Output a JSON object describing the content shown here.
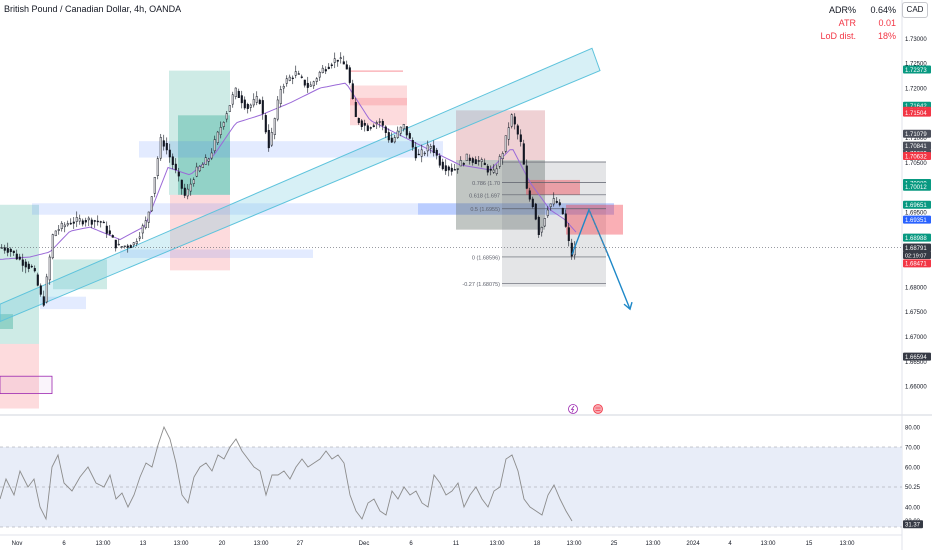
{
  "header": {
    "title": "British Pound / Canadian Dollar, 4h, OANDA",
    "currency": "CAD"
  },
  "stats": [
    {
      "label": "ADR%",
      "value": "0.64%",
      "color": "#131722"
    },
    {
      "label": "ATR",
      "value": "0.01",
      "color": "#f23645"
    },
    {
      "label": "LoD dist.",
      "value": "18%",
      "color": "#f23645"
    }
  ],
  "colors": {
    "up": "#1b2b2e",
    "down": "#131722",
    "wma": "#9b6ad8",
    "channel": "#5ec3dc",
    "arrow": "#1e88c8",
    "rsi": "#8c8c8c",
    "rsi_band": "#e8edf8",
    "green": "#089981",
    "red": "#f23645",
    "blue": "#2962ff",
    "gray": "#4a4e5a"
  },
  "chart_data": [
    {
      "type": "candlestick",
      "title": "British Pound / Canadian Dollar, 4h, OANDA",
      "ylim": [
        1.655,
        1.7365
      ],
      "y_ticks": [
        "1.73000",
        "1.72500",
        "1.72000",
        "1.71500",
        "1.71000",
        "1.70500",
        "1.70000",
        "1.69500",
        "1.69000",
        "1.68500",
        "1.68000",
        "1.67500",
        "1.67000",
        "1.66500",
        "1.66000"
      ],
      "x_ticks": [
        "Nov",
        "6",
        "13:00",
        "13",
        "13:00",
        "20",
        "13:00",
        "27",
        "Dec",
        "6",
        "11",
        "13:00",
        "18",
        "13:00",
        "25",
        "13:00",
        "2024",
        "4",
        "13:00",
        "15",
        "13:00"
      ],
      "anchors": [
        [
          0,
          1.688
        ],
        [
          10,
          1.6875
        ],
        [
          20,
          1.6855
        ],
        [
          34,
          1.6835
        ],
        [
          44,
          1.6762
        ],
        [
          54,
          1.691
        ],
        [
          70,
          1.693
        ],
        [
          88,
          1.6935
        ],
        [
          102,
          1.693
        ],
        [
          118,
          1.688
        ],
        [
          134,
          1.6885
        ],
        [
          148,
          1.6935
        ],
        [
          162,
          1.71
        ],
        [
          172,
          1.7055
        ],
        [
          186,
          1.698
        ],
        [
          196,
          1.703
        ],
        [
          210,
          1.706
        ],
        [
          222,
          1.7125
        ],
        [
          236,
          1.7195
        ],
        [
          248,
          1.716
        ],
        [
          260,
          1.718
        ],
        [
          270,
          1.708
        ],
        [
          282,
          1.7205
        ],
        [
          296,
          1.723
        ],
        [
          310,
          1.72
        ],
        [
          322,
          1.7235
        ],
        [
          338,
          1.726
        ],
        [
          348,
          1.724
        ],
        [
          356,
          1.714
        ],
        [
          368,
          1.712
        ],
        [
          380,
          1.7135
        ],
        [
          392,
          1.709
        ],
        [
          404,
          1.7125
        ],
        [
          418,
          1.706
        ],
        [
          432,
          1.7085
        ],
        [
          442,
          1.7045
        ],
        [
          454,
          1.7035
        ],
        [
          468,
          1.706
        ],
        [
          482,
          1.705
        ],
        [
          494,
          1.7025
        ],
        [
          504,
          1.7075
        ],
        [
          512,
          1.7145
        ],
        [
          522,
          1.7085
        ],
        [
          528,
          1.6985
        ],
        [
          534,
          1.6965
        ],
        [
          540,
          1.6905
        ],
        [
          548,
          1.696
        ],
        [
          556,
          1.6975
        ],
        [
          564,
          1.6945
        ],
        [
          572,
          1.6862
        ],
        [
          576,
          1.6878
        ]
      ],
      "wma_anchors": [
        [
          0,
          1.6855
        ],
        [
          30,
          1.686
        ],
        [
          50,
          1.687
        ],
        [
          70,
          1.6912
        ],
        [
          90,
          1.692
        ],
        [
          120,
          1.6895
        ],
        [
          145,
          1.6922
        ],
        [
          168,
          1.704
        ],
        [
          190,
          1.7025
        ],
        [
          214,
          1.7065
        ],
        [
          236,
          1.713
        ],
        [
          260,
          1.7145
        ],
        [
          290,
          1.717
        ],
        [
          320,
          1.72
        ],
        [
          346,
          1.721
        ],
        [
          370,
          1.7135
        ],
        [
          400,
          1.7105
        ],
        [
          430,
          1.7075
        ],
        [
          460,
          1.7045
        ],
        [
          490,
          1.7035
        ],
        [
          512,
          1.708
        ],
        [
          530,
          1.701
        ],
        [
          550,
          1.6955
        ],
        [
          565,
          1.6935
        ],
        [
          576,
          1.691
        ]
      ],
      "boxes": [
        {
          "x0": 0,
          "x1": 39,
          "y_top": 1.6965,
          "y_bot": 1.6685,
          "kind": "green"
        },
        {
          "x0": 0,
          "x1": 13,
          "y_top": 1.6745,
          "y_bot": 1.6715,
          "kind": "green_dark"
        },
        {
          "x0": 0,
          "x1": 39,
          "y_top": 1.6685,
          "y_bot": 1.6555,
          "kind": "red"
        },
        {
          "x0": 0,
          "x1": 52,
          "y_top": 1.662,
          "y_bot": 1.6585,
          "kind": "purple_outline"
        },
        {
          "x0": 53,
          "x1": 107,
          "y_top": 1.6855,
          "y_bot": 1.6795,
          "kind": "green"
        },
        {
          "x0": 40,
          "x1": 86,
          "y_top": 1.678,
          "y_bot": 1.6755,
          "kind": "blue"
        },
        {
          "x0": 169,
          "x1": 230,
          "y_top": 1.7235,
          "y_bot": 1.6985,
          "kind": "green"
        },
        {
          "x0": 178,
          "x1": 230,
          "y_top": 1.7145,
          "y_bot": 1.6985,
          "kind": "green_dark"
        },
        {
          "x0": 170,
          "x1": 230,
          "y_top": 1.6985,
          "y_bot": 1.6833,
          "kind": "red"
        },
        {
          "x0": 139,
          "x1": 443,
          "y_top": 1.7093,
          "y_bot": 1.706,
          "kind": "blue"
        },
        {
          "x0": 32,
          "x1": 614,
          "y_top": 1.6968,
          "y_bot": 1.6945,
          "kind": "blue"
        },
        {
          "x0": 120,
          "x1": 313,
          "y_top": 1.6875,
          "y_bot": 1.6858,
          "kind": "blue"
        },
        {
          "x0": 418,
          "x1": 614,
          "y_top": 1.6968,
          "y_bot": 1.6945,
          "kind": "blue_dark"
        },
        {
          "x0": 350,
          "x1": 403,
          "y_top": 1.7235,
          "y_bot": 1.7233,
          "kind": "red_line"
        },
        {
          "x0": 350,
          "x1": 407,
          "y_top": 1.7205,
          "y_bot": 1.7165,
          "kind": "red"
        },
        {
          "x0": 350,
          "x1": 407,
          "y_top": 1.718,
          "y_bot": 1.7125,
          "kind": "red"
        },
        {
          "x0": 456,
          "x1": 545,
          "y_top": 1.7155,
          "y_bot": 1.6915,
          "kind": "red"
        },
        {
          "x0": 456,
          "x1": 545,
          "y_top": 1.7155,
          "y_bot": 1.6915,
          "kind": "gray_overlay"
        },
        {
          "x0": 456,
          "x1": 545,
          "y_top": 1.7055,
          "y_bot": 1.6915,
          "kind": "green"
        },
        {
          "x0": 502,
          "x1": 606,
          "y_top": 1.7051,
          "y_bot": 1.68,
          "kind": "gray_fib"
        },
        {
          "x0": 526,
          "x1": 580,
          "y_top": 1.7015,
          "y_bot": 1.6985,
          "kind": "red_dark"
        },
        {
          "x0": 566,
          "x1": 623,
          "y_top": 1.6965,
          "y_bot": 1.6905,
          "kind": "red_dark"
        }
      ],
      "fib_levels": [
        {
          "y": 1.7051,
          "label": ""
        },
        {
          "y": 1.701,
          "label": "0.786 (1.70"
        },
        {
          "y": 1.6985,
          "label": "0.618 (1.697"
        },
        {
          "y": 1.6957,
          "label": "0.5 (1.6955)"
        },
        {
          "y": 1.686,
          "label": "0 (1.68596)"
        },
        {
          "y": 1.6807,
          "label": "-0.27 (1.68075)"
        }
      ],
      "channel": {
        "lower_start": [
          0,
          1.673
        ],
        "lower_end": [
          600,
          1.7235
        ],
        "upper_start": [
          0,
          1.6765
        ],
        "upper_end": [
          592,
          1.728
        ]
      },
      "projection": [
        [
          572,
          1.6865
        ],
        [
          589,
          1.6955
        ],
        [
          608,
          1.6865
        ],
        [
          630,
          1.6755
        ]
      ],
      "price_labels": [
        {
          "text": "1.72373",
          "price": 1.72373,
          "kind": "green"
        },
        {
          "text": "1.71642",
          "price": 1.71642,
          "kind": "green"
        },
        {
          "text": "1.71542",
          "price": 1.71542,
          "kind": "red"
        },
        {
          "text": "1.71504",
          "price": 1.71504,
          "kind": "red"
        },
        {
          "text": "1.71079",
          "price": 1.71079,
          "kind": "gray"
        },
        {
          "text": "1.70841",
          "price": 1.70841,
          "kind": "gray"
        },
        {
          "text": "1.70689",
          "price": 1.70689,
          "kind": "gray"
        },
        {
          "text": "1.70632",
          "price": 1.70632,
          "kind": "red"
        },
        {
          "text": "1.70089",
          "price": 1.70089,
          "kind": "green"
        },
        {
          "text": "1.70012",
          "price": 1.70012,
          "kind": "green"
        },
        {
          "text": "1.69651",
          "price": 1.69651,
          "kind": "green"
        },
        {
          "text": "1.69351",
          "price": 1.69351,
          "kind": "blue"
        },
        {
          "text": "1.68988",
          "price": 1.68988,
          "kind": "green"
        },
        {
          "text": "1.68791",
          "price": 1.68791,
          "kind": "gray_dark"
        },
        {
          "text": "02:19:07",
          "price": 1.6864,
          "kind": "gray_dark_small"
        },
        {
          "text": "1.68471",
          "price": 1.68471,
          "kind": "red"
        },
        {
          "text": "1.66594",
          "price": 1.66594,
          "kind": "gray_dark"
        }
      ],
      "last_price": 1.68791
    },
    {
      "type": "line",
      "series": [
        {
          "values": [
            [
              0,
              44
            ],
            [
              6,
              54
            ],
            [
              14,
              46
            ],
            [
              20,
              58
            ],
            [
              28,
              50
            ],
            [
              34,
              54
            ],
            [
              40,
              40
            ],
            [
              46,
              34
            ],
            [
              52,
              60
            ],
            [
              58,
              66
            ],
            [
              64,
              52
            ],
            [
              72,
              48
            ],
            [
              80,
              55
            ],
            [
              88,
              60
            ],
            [
              96,
              52
            ],
            [
              104,
              50
            ],
            [
              110,
              56
            ],
            [
              116,
              44
            ],
            [
              122,
              47
            ],
            [
              128,
              40
            ],
            [
              134,
              46
            ],
            [
              140,
              55
            ],
            [
              146,
              62
            ],
            [
              152,
              60
            ],
            [
              158,
              71
            ],
            [
              164,
              80
            ],
            [
              170,
              74
            ],
            [
              176,
              62
            ],
            [
              182,
              46
            ],
            [
              188,
              42
            ],
            [
              194,
              55
            ],
            [
              200,
              60
            ],
            [
              206,
              62
            ],
            [
              212,
              58
            ],
            [
              218,
              66
            ],
            [
              224,
              64
            ],
            [
              230,
              70
            ],
            [
              236,
              74
            ],
            [
              242,
              68
            ],
            [
              248,
              64
            ],
            [
              254,
              60
            ],
            [
              260,
              58
            ],
            [
              266,
              46
            ],
            [
              272,
              56
            ],
            [
              278,
              56
            ],
            [
              284,
              58
            ],
            [
              290,
              54
            ],
            [
              296,
              60
            ],
            [
              302,
              64
            ],
            [
              308,
              60
            ],
            [
              314,
              62
            ],
            [
              320,
              64
            ],
            [
              326,
              68
            ],
            [
              332,
              64
            ],
            [
              338,
              66
            ],
            [
              344,
              62
            ],
            [
              350,
              46
            ],
            [
              356,
              38
            ],
            [
              362,
              34
            ],
            [
              368,
              42
            ],
            [
              374,
              44
            ],
            [
              380,
              38
            ],
            [
              386,
              36
            ],
            [
              392,
              48
            ],
            [
              398,
              44
            ],
            [
              404,
              50
            ],
            [
              410,
              46
            ],
            [
              416,
              48
            ],
            [
              422,
              42
            ],
            [
              428,
              40
            ],
            [
              434,
              56
            ],
            [
              440,
              52
            ],
            [
              446,
              46
            ],
            [
              452,
              48
            ],
            [
              458,
              52
            ],
            [
              464,
              40
            ],
            [
              470,
              46
            ],
            [
              476,
              50
            ],
            [
              482,
              44
            ],
            [
              488,
              40
            ],
            [
              494,
              48
            ],
            [
              500,
              50
            ],
            [
              506,
              64
            ],
            [
              512,
              66
            ],
            [
              518,
              58
            ],
            [
              524,
              44
            ],
            [
              530,
              40
            ],
            [
              536,
              38
            ],
            [
              542,
              36
            ],
            [
              548,
              46
            ],
            [
              554,
              51
            ],
            [
              560,
              44
            ],
            [
              566,
              38
            ],
            [
              572,
              33
            ]
          ]
        }
      ],
      "ylim": [
        29,
        84
      ],
      "y_ticks": [
        "80.00",
        "70.00",
        "60.00",
        "50.25",
        "40.00",
        "33.03",
        "31.37"
      ],
      "levels": [
        70,
        50,
        30
      ],
      "last_value": "31.37"
    }
  ]
}
